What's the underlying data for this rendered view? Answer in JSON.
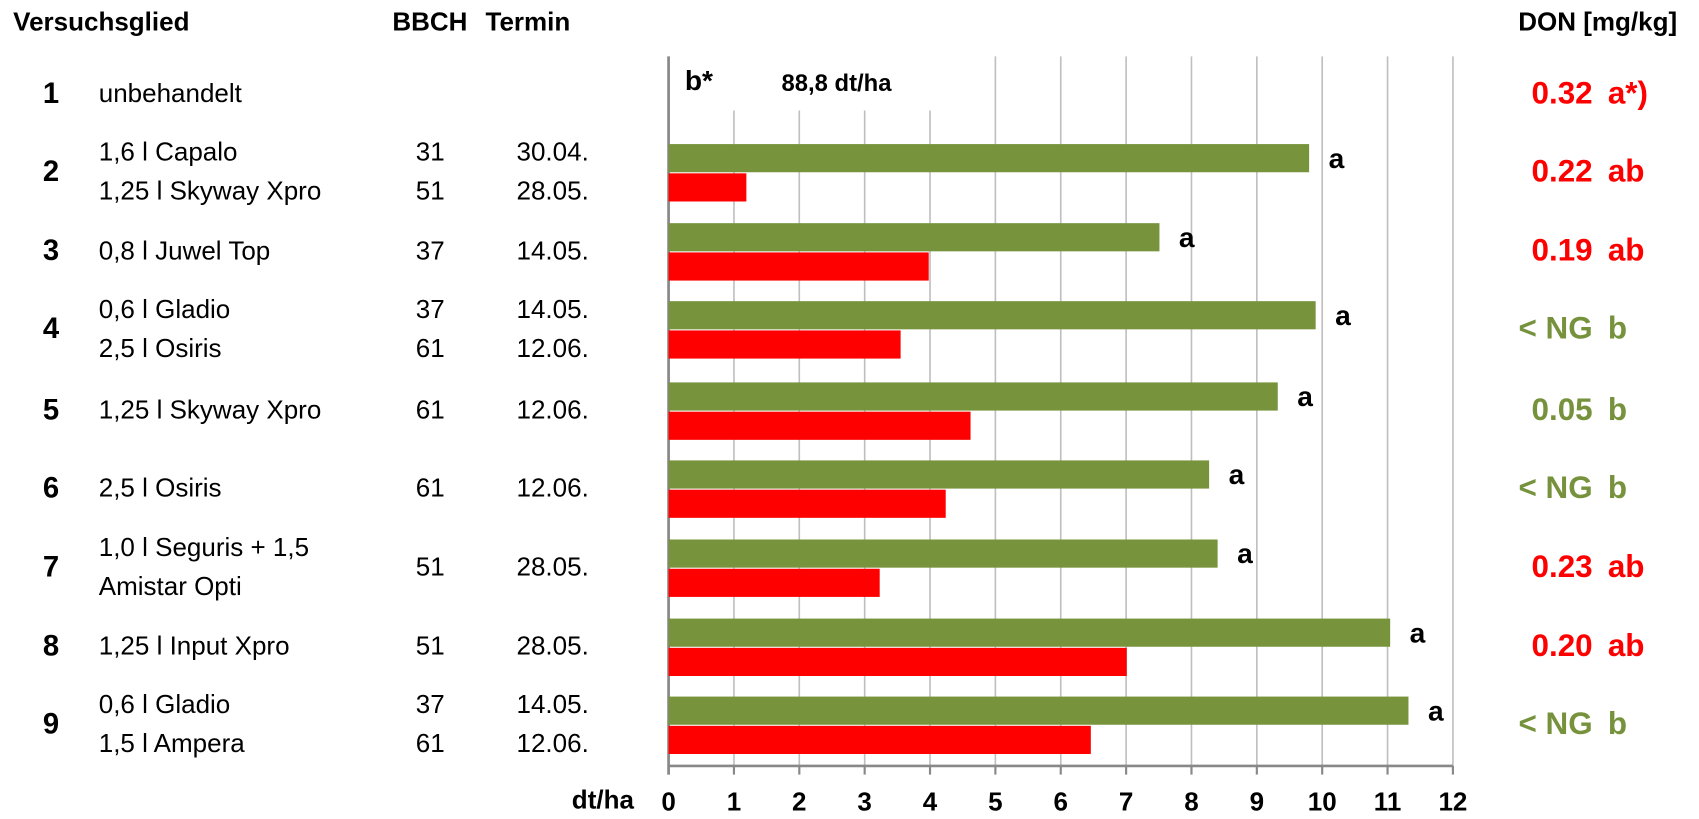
{
  "header": {
    "col1": "Versuchsglied",
    "col2": "BBCH",
    "col3": "Termin",
    "col4": "DON [mg/kg]"
  },
  "rows": [
    {
      "number": "1",
      "products": [
        "unbehandelt"
      ],
      "bbch": [],
      "termin": [],
      "don": "0.32",
      "don_letter": "a*)",
      "don_color": "#ff0000"
    },
    {
      "number": "2",
      "products": [
        "1,6 l Capalo",
        "1,25 l Skyway Xpro"
      ],
      "bbch": [
        "31",
        "51"
      ],
      "termin": [
        "30.04.",
        "28.05."
      ],
      "don": "0.22",
      "don_letter": "ab",
      "don_color": "#ff0000"
    },
    {
      "number": "3",
      "products": [
        "0,8 l Juwel Top"
      ],
      "bbch": [
        "37"
      ],
      "termin": [
        "14.05."
      ],
      "don": "0.19",
      "don_letter": "ab",
      "don_color": "#ff0000"
    },
    {
      "number": "4",
      "products": [
        "0,6 l Gladio",
        "2,5 l Osiris"
      ],
      "bbch": [
        "37",
        "61"
      ],
      "termin": [
        "14.05.",
        "12.06."
      ],
      "don": "< NG",
      "don_letter": "b",
      "don_color": "#76923c"
    },
    {
      "number": "5",
      "products": [
        "1,25 l Skyway Xpro"
      ],
      "bbch": [
        "61"
      ],
      "termin": [
        "12.06."
      ],
      "don": "0.05",
      "don_letter": "b",
      "don_color": "#76923c"
    },
    {
      "number": "6",
      "products": [
        "2,5 l Osiris"
      ],
      "bbch": [
        "61"
      ],
      "termin": [
        "12.06."
      ],
      "don": "< NG",
      "don_letter": "b",
      "don_color": "#76923c"
    },
    {
      "number": "7",
      "products": [
        "1,0 l Seguris + 1,5",
        "Amistar Opti"
      ],
      "bbch": [
        "51"
      ],
      "termin": [
        "28.05."
      ],
      "don": "0.23",
      "don_letter": "ab",
      "don_color": "#ff0000"
    },
    {
      "number": "8",
      "products": [
        "1,25 l Input Xpro"
      ],
      "bbch": [
        "51"
      ],
      "termin": [
        "28.05."
      ],
      "don": "0.20",
      "don_letter": "ab",
      "don_color": "#ff0000"
    },
    {
      "number": "9",
      "products": [
        "0,6 l Gladio",
        "1,5 l Ampera"
      ],
      "bbch": [
        "37",
        "61"
      ],
      "termin": [
        "14.05.",
        "12.06."
      ],
      "don": "< NG",
      "don_letter": "b",
      "don_color": "#76923c"
    }
  ],
  "chart_data": {
    "type": "bar",
    "orientation": "horizontal",
    "x_label": "dt/ha",
    "xlim": [
      0,
      12
    ],
    "xticks": [
      0,
      1,
      2,
      3,
      4,
      5,
      6,
      7,
      8,
      9,
      10,
      11,
      12
    ],
    "grid": true,
    "series": [
      {
        "color": "#77933c",
        "values": [
          null,
          9.8,
          7.51,
          9.9,
          9.32,
          8.27,
          8.4,
          11.04,
          11.32
        ]
      },
      {
        "color": "#ff0000",
        "values": [
          null,
          1.19,
          3.98,
          3.55,
          4.62,
          4.24,
          3.23,
          7.01,
          6.46
        ]
      }
    ],
    "letters": [
      "b*",
      "a",
      "a",
      "a",
      "a",
      "a",
      "a",
      "a",
      "a"
    ],
    "annotation": "88,8 dt/ha"
  }
}
